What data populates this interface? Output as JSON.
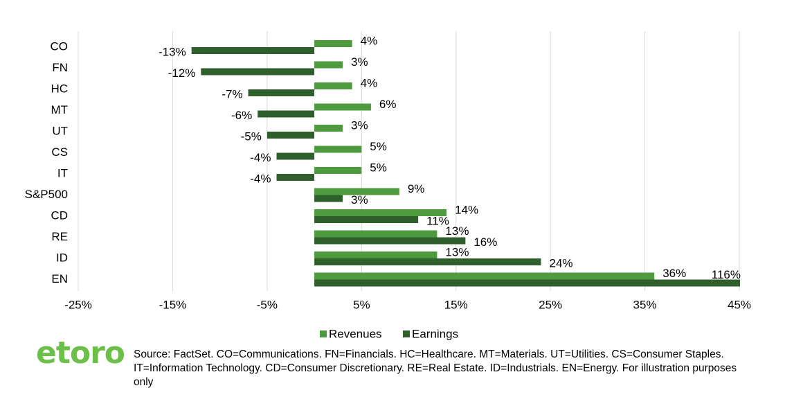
{
  "chart_data": {
    "type": "bar",
    "orientation": "horizontal",
    "categories": [
      "CO",
      "FN",
      "HC",
      "MT",
      "UT",
      "CS",
      "IT",
      "S&P500",
      "CD",
      "RE",
      "ID",
      "EN"
    ],
    "series": [
      {
        "name": "Revenues",
        "color": "#4e9a3e",
        "values": [
          4,
          3,
          4,
          6,
          3,
          5,
          5,
          9,
          14,
          13,
          13,
          36
        ],
        "value_labels": [
          "4%",
          "3%",
          "4%",
          "6%",
          "3%",
          "5%",
          "5%",
          "9%",
          "14%",
          "13%",
          "13%",
          "36%"
        ]
      },
      {
        "name": "Earnings",
        "color": "#2f5f2b",
        "values": [
          -13,
          -12,
          -7,
          -6,
          -5,
          -4,
          -4,
          3,
          11,
          16,
          24,
          116
        ],
        "value_labels": [
          "-13%",
          "-12%",
          "-7%",
          "-6%",
          "-5%",
          "-4%",
          "-4%",
          "3%",
          "11%",
          "16%",
          "24%",
          "116%"
        ]
      }
    ],
    "xlim": [
      -25,
      45
    ],
    "xticks": [
      {
        "value": -25,
        "label": "-25%"
      },
      {
        "value": -15,
        "label": "-15%"
      },
      {
        "value": -5,
        "label": "-5%"
      },
      {
        "value": 5,
        "label": "5%"
      },
      {
        "value": 15,
        "label": "15%"
      },
      {
        "value": 25,
        "label": "25%"
      },
      {
        "value": 35,
        "label": "35%"
      },
      {
        "value": 45,
        "label": "45%"
      }
    ],
    "grid": true,
    "legend": "bottom"
  },
  "logo": "etoro",
  "source": "Source: FactSet. CO=Communications. FN=Financials. HC=Healthcare. MT=Materials. UT=Utilities. CS=Consumer Staples. IT=Information Technology. CD=Consumer Discretionary. RE=Real Estate. ID=Industrials. EN=Energy. For illustration purposes only"
}
